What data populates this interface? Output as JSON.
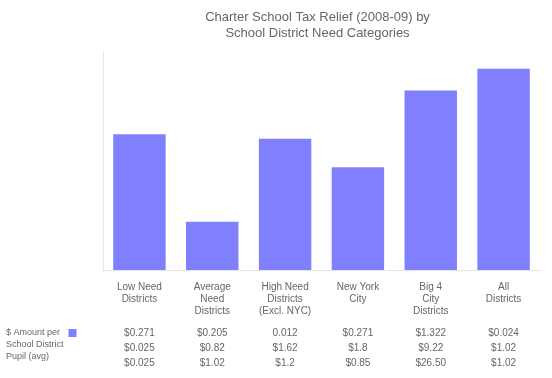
{
  "chart_data": {
    "type": "bar",
    "title": "Charter School Tax Relief (2008-09) by\nSchool District Need Categories",
    "categories": [
      "Low Need\nDistricts",
      "Average\nNeed\nDistricts",
      "High Need\nDistricts\n(Excl. NYC)",
      "New York\nCity",
      "Big 4\nCity\nDistricts",
      "All\nDistricts"
    ],
    "values": [
      62,
      22,
      60,
      47,
      82,
      92
    ],
    "color": "#8080ff",
    "ylim": [
      0,
      100
    ],
    "grid": false,
    "tick_labels": "x",
    "table_label": "$ Amount per\nSchool District\nPupil (avg)",
    "table_rows": [
      [
        "$0.271",
        "$0.205",
        "0.012",
        "$0.271",
        "$1.322",
        "$0.024"
      ],
      [
        "$0.025",
        "$0.82",
        "$1.62",
        "$1.8",
        "$9.22",
        "$1.02"
      ],
      [
        "$0.025",
        "$1.02",
        "$1.2",
        "$0.85",
        "$26.50",
        "$1.02"
      ]
    ]
  }
}
